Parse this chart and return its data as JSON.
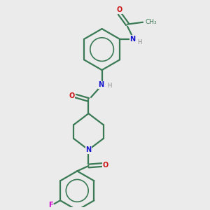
{
  "background_color": "#ebebeb",
  "bond_color": "#3a7a55",
  "N_color": "#1414cc",
  "O_color": "#cc1414",
  "F_color": "#cc00cc",
  "H_color": "#888888",
  "lw": 1.6,
  "figsize": [
    3.0,
    3.0
  ],
  "dpi": 100,
  "xlim": [
    0,
    10
  ],
  "ylim": [
    0,
    10
  ]
}
